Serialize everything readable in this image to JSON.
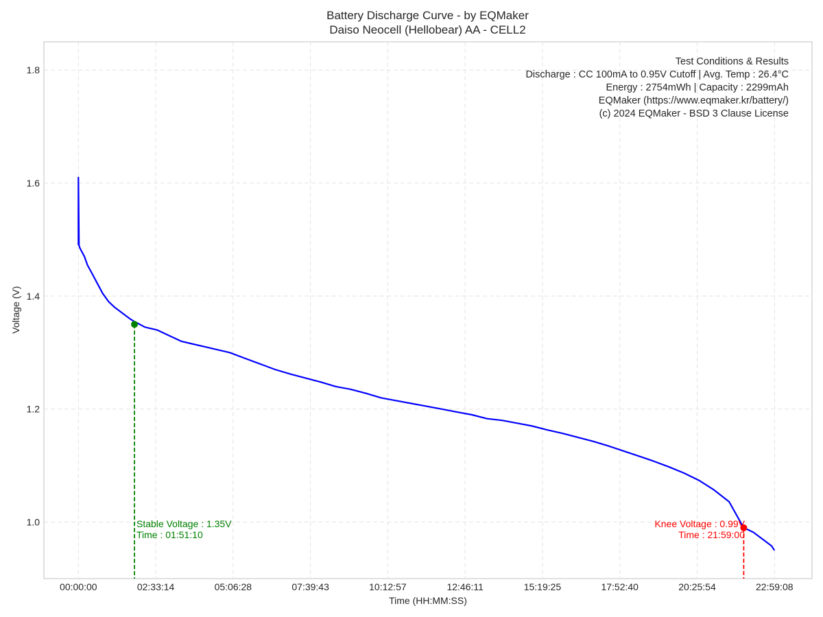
{
  "chart_data": {
    "type": "line",
    "title_lines": [
      "Battery Discharge Curve - by EQMaker",
      "Daiso Neocell (Hellobear) AA - CELL2"
    ],
    "xlabel": "Time (HH:MM:SS)",
    "ylabel": "Voltage (V)",
    "x_tick_labels": [
      "00:00:00",
      "02:33:14",
      "05:06:28",
      "07:39:43",
      "10:12:57",
      "12:46:11",
      "15:19:25",
      "17:52:40",
      "20:25:54",
      "22:59:08"
    ],
    "y_ticks": [
      1.0,
      1.2,
      1.4,
      1.6,
      1.8
    ],
    "y_tick_labels": [
      "1.0",
      "1.2",
      "1.4",
      "1.6",
      "1.8"
    ],
    "ylim": [
      0.9,
      1.85
    ],
    "xlim_hours": [
      -1.14,
      24.24
    ],
    "grid": true,
    "series": [
      {
        "color": "#0000ff",
        "x_hours": [
          0.0,
          0.0,
          0.02,
          0.05,
          0.1,
          0.2,
          0.3,
          0.45,
          0.6,
          0.8,
          1.0,
          1.2,
          1.45,
          1.7,
          1.85,
          2.2,
          2.6,
          3.0,
          3.4,
          3.8,
          4.2,
          4.6,
          5.0,
          5.5,
          6.0,
          6.5,
          7.0,
          7.5,
          8.0,
          8.5,
          9.0,
          9.5,
          10.0,
          10.5,
          11.0,
          11.5,
          12.0,
          12.5,
          13.0,
          13.5,
          14.0,
          14.5,
          15.0,
          15.5,
          16.0,
          16.5,
          17.0,
          17.5,
          18.0,
          18.5,
          19.0,
          19.5,
          20.0,
          20.5,
          21.0,
          21.5,
          21.98,
          22.3,
          22.6,
          22.9,
          23.0
        ],
        "voltage": [
          1.49,
          1.61,
          1.49,
          1.485,
          1.48,
          1.47,
          1.455,
          1.44,
          1.425,
          1.405,
          1.39,
          1.38,
          1.37,
          1.36,
          1.355,
          1.345,
          1.34,
          1.33,
          1.32,
          1.315,
          1.31,
          1.305,
          1.3,
          1.29,
          1.28,
          1.27,
          1.262,
          1.255,
          1.248,
          1.24,
          1.235,
          1.228,
          1.22,
          1.215,
          1.21,
          1.205,
          1.2,
          1.195,
          1.19,
          1.183,
          1.18,
          1.175,
          1.17,
          1.163,
          1.157,
          1.15,
          1.143,
          1.135,
          1.126,
          1.117,
          1.108,
          1.098,
          1.087,
          1.074,
          1.057,
          1.036,
          0.99,
          0.982,
          0.97,
          0.958,
          0.95
        ]
      }
    ],
    "markers": [
      {
        "label": "Stable Voltage",
        "time": "01:51:10",
        "voltage": 1.35,
        "x_hours": 1.853,
        "color": "#008000"
      },
      {
        "label": "Knee Voltage",
        "time": "21:59:00",
        "voltage": 0.99,
        "x_hours": 21.983,
        "color": "#ff0000"
      }
    ],
    "annotations": {
      "stable_line1": "Stable Voltage : 1.35V",
      "stable_line2": "Time : 01:51:10",
      "knee_line1": "Knee Voltage : 0.99V",
      "knee_line2": "Time : 21:59:00"
    },
    "info_box": {
      "title": "Test Conditions & Results",
      "line1": "Discharge : CC 100mA to 0.95V Cutoff | Avg. Temp : 26.4°C",
      "line2": "Energy : 2754mWh | Capacity : 2299mAh",
      "line3": "EQMaker (https://www.eqmaker.kr/battery/)",
      "line4": "(c) 2024 EQMaker - BSD 3 Clause License"
    }
  }
}
